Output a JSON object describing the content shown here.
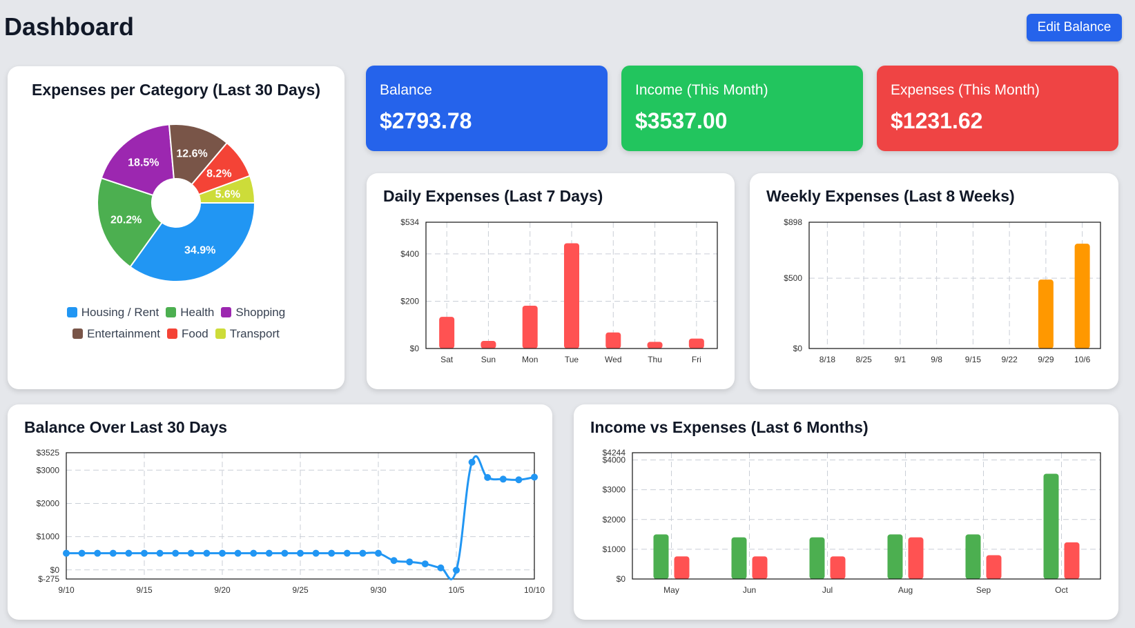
{
  "header": {
    "title": "Dashboard",
    "edit_button": "Edit Balance"
  },
  "stats": {
    "balance": {
      "label": "Balance",
      "value": "$2793.78",
      "color": "#2563eb"
    },
    "income": {
      "label": "Income (This Month)",
      "value": "$3537.00",
      "color": "#22c55e"
    },
    "expenses": {
      "label": "Expenses (This Month)",
      "value": "$1231.62",
      "color": "#ef4444"
    }
  },
  "chart_data": [
    {
      "id": "category",
      "type": "pie",
      "title": "Expenses per Category (Last 30 Days)",
      "donut": true,
      "slices": [
        {
          "name": "Housing / Rent",
          "value": 34.9,
          "label": "34.9%",
          "color": "#2196f3"
        },
        {
          "name": "Health",
          "value": 20.2,
          "label": "20.2%",
          "color": "#4caf50"
        },
        {
          "name": "Shopping",
          "value": 18.5,
          "label": "18.5%",
          "color": "#9c27b0"
        },
        {
          "name": "Entertainment",
          "value": 12.6,
          "label": "12.6%",
          "color": "#795548"
        },
        {
          "name": "Food",
          "value": 8.2,
          "label": "8.2%",
          "color": "#f44336"
        },
        {
          "name": "Transport",
          "value": 5.6,
          "label": "5.6%",
          "color": "#cddc39"
        }
      ],
      "legend_rows": [
        [
          "Housing / Rent",
          "Health",
          "Shopping"
        ],
        [
          "Entertainment",
          "Food",
          "Transport"
        ]
      ]
    },
    {
      "id": "daily",
      "type": "bar",
      "title": "Daily Expenses (Last 7 Days)",
      "categories": [
        "Sat",
        "Sun",
        "Mon",
        "Tue",
        "Wed",
        "Thu",
        "Fri"
      ],
      "values": [
        134,
        32,
        181,
        445,
        68,
        28,
        42
      ],
      "ylim": [
        0,
        534
      ],
      "yticks": [
        0,
        200,
        400,
        534
      ],
      "ytick_labels": [
        "$0",
        "$200",
        "$400",
        "$534"
      ],
      "color": "#ff5252",
      "grid": true
    },
    {
      "id": "weekly",
      "type": "bar",
      "title": "Weekly Expenses (Last 8 Weeks)",
      "categories": [
        "8/18",
        "8/25",
        "9/1",
        "9/8",
        "9/15",
        "9/22",
        "9/29",
        "10/6"
      ],
      "values": [
        0,
        0,
        0,
        0,
        0,
        0,
        490,
        745
      ],
      "ylim": [
        0,
        898
      ],
      "yticks": [
        0,
        500,
        898
      ],
      "ytick_labels": [
        "$0",
        "$500",
        "$898"
      ],
      "color": "#ff9800",
      "grid": true
    },
    {
      "id": "balance",
      "type": "line",
      "title": "Balance Over Last 30 Days",
      "x": [
        "9/10",
        "9/11",
        "9/12",
        "9/13",
        "9/14",
        "9/15",
        "9/16",
        "9/17",
        "9/18",
        "9/19",
        "9/20",
        "9/21",
        "9/22",
        "9/23",
        "9/24",
        "9/25",
        "9/26",
        "9/27",
        "9/28",
        "9/29",
        "9/30",
        "10/1",
        "10/2",
        "10/3",
        "10/4",
        "10/5",
        "10/6",
        "10/7",
        "10/8",
        "10/9",
        "10/10"
      ],
      "values": [
        500,
        500,
        500,
        500,
        500,
        500,
        500,
        500,
        500,
        500,
        500,
        500,
        500,
        500,
        500,
        500,
        500,
        500,
        500,
        500,
        500,
        280,
        240,
        180,
        60,
        -10,
        3240,
        2780,
        2730,
        2710,
        2790
      ],
      "xtick_labels": [
        "9/10",
        "9/15",
        "9/20",
        "9/25",
        "9/30",
        "10/5",
        "10/10"
      ],
      "ylim": [
        -275,
        3525
      ],
      "yticks": [
        -275,
        0,
        1000,
        2000,
        3000,
        3525
      ],
      "ytick_labels": [
        "$-275",
        "$0",
        "$1000",
        "$2000",
        "$3000",
        "$3525"
      ],
      "color": "#2196f3",
      "grid": true
    },
    {
      "id": "incomeexp",
      "type": "bar",
      "title": "Income vs Expenses (Last 6 Months)",
      "categories": [
        "May",
        "Jun",
        "Jul",
        "Aug",
        "Sep",
        "Oct"
      ],
      "series": [
        {
          "values": [
            1500,
            1400,
            1400,
            1500,
            1500,
            3537
          ],
          "color": "#4caf50"
        },
        {
          "values": [
            760,
            760,
            760,
            1400,
            800,
            1232
          ],
          "color": "#ff5252"
        }
      ],
      "ylim": [
        0,
        4244
      ],
      "yticks": [
        0,
        1000,
        2000,
        3000,
        4000,
        4244
      ],
      "ytick_labels": [
        "$0",
        "$1000",
        "$2000",
        "$3000",
        "$4000",
        "$4244"
      ],
      "grid": true
    }
  ]
}
